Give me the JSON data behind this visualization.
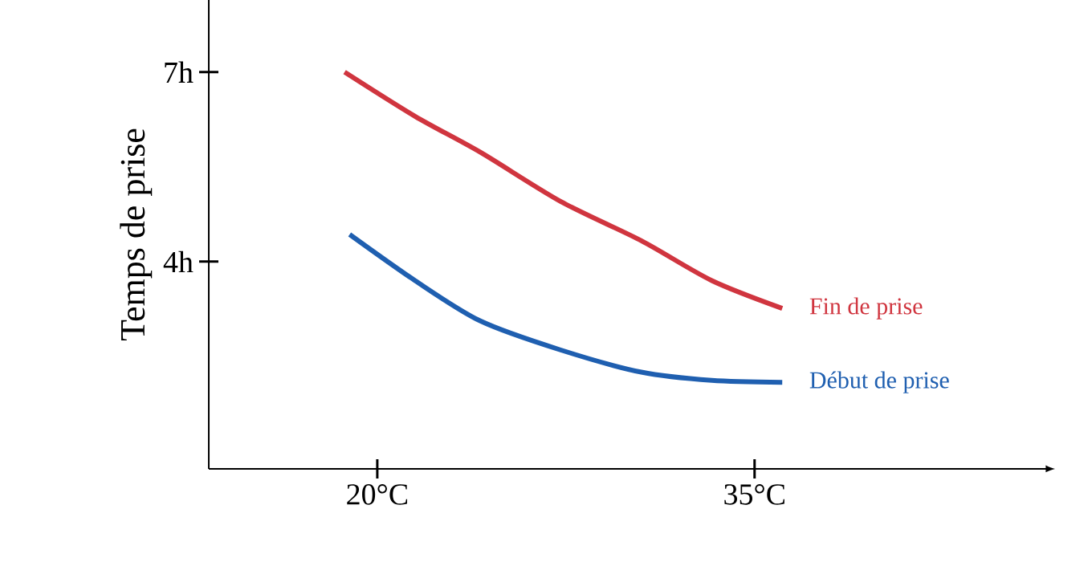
{
  "chart_data": {
    "type": "line",
    "ylabel": "Temps de prise",
    "xlim": [
      13.3,
      46.5
    ],
    "ylim": [
      0.72,
      8.14
    ],
    "xticks": [
      {
        "value": 20,
        "label": "20°C"
      },
      {
        "value": 35,
        "label": "35°C"
      }
    ],
    "yticks": [
      {
        "value": 4,
        "label": "4h"
      },
      {
        "value": 7,
        "label": "7h"
      }
    ],
    "grid": false,
    "legend": false,
    "marker": "none",
    "line_style": "solid",
    "series": [
      {
        "name": "Fin de prise",
        "color": "#d0353f",
        "x": [
          18.7,
          21.5,
          24.1,
          27.3,
          30.5,
          33.3,
          36.1
        ],
        "values": [
          7.0,
          6.3,
          5.73,
          4.95,
          4.33,
          3.7,
          3.26
        ]
      },
      {
        "name": "Début de prise",
        "color": "#1f5fb0",
        "x": [
          18.9,
          21.5,
          24.1,
          27.3,
          30.5,
          33.3,
          36.1
        ],
        "values": [
          4.43,
          3.7,
          3.06,
          2.6,
          2.25,
          2.12,
          2.09
        ]
      }
    ]
  }
}
